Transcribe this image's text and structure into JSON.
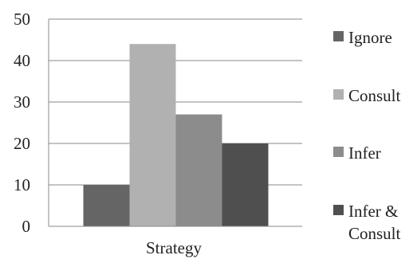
{
  "chart_data": {
    "type": "bar",
    "categories": [
      "Strategy"
    ],
    "xlabel": "Strategy",
    "ylabel": "",
    "title": "",
    "ylim": [
      0,
      50
    ],
    "yticks": [
      0,
      10,
      20,
      30,
      40,
      50
    ],
    "grid": true,
    "legend_position": "right",
    "series": [
      {
        "name": "Ignore",
        "values": [
          10
        ],
        "color": "#656565"
      },
      {
        "name": "Consult",
        "values": [
          44
        ],
        "color": "#b1b1b1"
      },
      {
        "name": "Infer",
        "values": [
          27
        ],
        "color": "#8c8c8c"
      },
      {
        "name": "Infer & Consult",
        "values": [
          20
        ],
        "color": "#4f4f4f"
      }
    ],
    "legend": [
      {
        "lines": [
          "Ignore"
        ]
      },
      {
        "lines": [
          "Consult"
        ]
      },
      {
        "lines": [
          "Infer"
        ]
      },
      {
        "lines": [
          "Infer &",
          "Consult"
        ]
      }
    ]
  }
}
